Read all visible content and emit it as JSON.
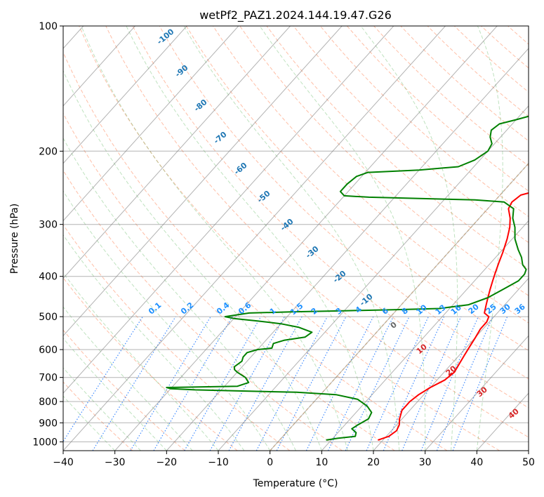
{
  "chart_data": {
    "type": "line",
    "title": "wetPf2_PAZ1.2024.144.19.47.G26",
    "xlabel": "Temperature (°C)",
    "ylabel": "Pressure (hPa)",
    "xlim": [
      -40,
      50
    ],
    "ylim": [
      1050,
      100
    ],
    "y_scale": "log",
    "grid": true,
    "x_ticks": [
      "−40",
      "−30",
      "−20",
      "−10",
      "0",
      "10",
      "20",
      "30",
      "40",
      "50"
    ],
    "y_ticks": [
      "100",
      "200",
      "300",
      "400",
      "500",
      "600",
      "700",
      "800",
      "900",
      "1000"
    ],
    "series": [
      {
        "color": "#ff0000",
        "points": [
          [
            19,
            990
          ],
          [
            20.5,
            970
          ],
          [
            21,
            940
          ],
          [
            20.5,
            910
          ],
          [
            19.5,
            880
          ],
          [
            18.5,
            840
          ],
          [
            18.5,
            800
          ],
          [
            19,
            770
          ],
          [
            20,
            740
          ],
          [
            21.5,
            710
          ],
          [
            22,
            680
          ],
          [
            21.5,
            650
          ],
          [
            21,
            620
          ],
          [
            20.5,
            590
          ],
          [
            20,
            560
          ],
          [
            19.5,
            535
          ],
          [
            19.5,
            515
          ],
          [
            19,
            500
          ],
          [
            17.5,
            490
          ],
          [
            16.5,
            470
          ],
          [
            15.5,
            450
          ],
          [
            14.5,
            430
          ],
          [
            13.5,
            410
          ],
          [
            12.5,
            390
          ],
          [
            11.5,
            370
          ],
          [
            10.5,
            350
          ],
          [
            9,
            325
          ],
          [
            7.5,
            305
          ],
          [
            6,
            290
          ],
          [
            4,
            275
          ],
          [
            3.5,
            265
          ],
          [
            4,
            255
          ],
          [
            6,
            250
          ],
          [
            8,
            245
          ],
          [
            10,
            240
          ],
          [
            10.5,
            230
          ],
          [
            9,
            215
          ],
          [
            7.5,
            200
          ],
          [
            7,
            185
          ],
          [
            6.5,
            170
          ],
          [
            6,
            160
          ],
          [
            6,
            148
          ],
          [
            5.5,
            135
          ],
          [
            5.5,
            125
          ],
          [
            5.5,
            117
          ],
          [
            6,
            112
          ],
          [
            7,
            106
          ],
          [
            8,
            100
          ]
        ]
      },
      {
        "color": "#008000",
        "points": [
          [
            9,
            990
          ],
          [
            11,
            980
          ],
          [
            14,
            970
          ],
          [
            13.5,
            950
          ],
          [
            12,
            930
          ],
          [
            12.5,
            910
          ],
          [
            13.5,
            880
          ],
          [
            13,
            850
          ],
          [
            11,
            820
          ],
          [
            8,
            790
          ],
          [
            3,
            770
          ],
          [
            -5,
            760
          ],
          [
            -15,
            755
          ],
          [
            -25,
            750
          ],
          [
            -30,
            745
          ],
          [
            -31,
            740
          ],
          [
            -25,
            738
          ],
          [
            -17.5,
            735
          ],
          [
            -16,
            720
          ],
          [
            -17.5,
            700
          ],
          [
            -20,
            680
          ],
          [
            -21,
            670
          ],
          [
            -21.5,
            660
          ],
          [
            -21,
            640
          ],
          [
            -21.5,
            625
          ],
          [
            -21.5,
            610
          ],
          [
            -20,
            600
          ],
          [
            -17.5,
            595
          ],
          [
            -18,
            580
          ],
          [
            -16.5,
            570
          ],
          [
            -13,
            560
          ],
          [
            -12.5,
            545
          ],
          [
            -16,
            530
          ],
          [
            -20,
            520
          ],
          [
            -25,
            512
          ],
          [
            -30,
            505
          ],
          [
            -32,
            500
          ],
          [
            -30,
            495
          ],
          [
            -28,
            490
          ],
          [
            -20,
            487
          ],
          [
            -10,
            484
          ],
          [
            0,
            481
          ],
          [
            8,
            478
          ],
          [
            13,
            468
          ],
          [
            15.5,
            450
          ],
          [
            17,
            430
          ],
          [
            18.5,
            410
          ],
          [
            18.5,
            395
          ],
          [
            18,
            385
          ],
          [
            16.5,
            375
          ],
          [
            15,
            360
          ],
          [
            13,
            345
          ],
          [
            10.5,
            325
          ],
          [
            8.5,
            305
          ],
          [
            6.5,
            290
          ],
          [
            5,
            275
          ],
          [
            2,
            265
          ],
          [
            -4,
            262
          ],
          [
            -15,
            260
          ],
          [
            -25,
            258
          ],
          [
            -30,
            256
          ],
          [
            -31.5,
            250
          ],
          [
            -31.5,
            240
          ],
          [
            -31,
            230
          ],
          [
            -29.5,
            225
          ],
          [
            -20,
            222
          ],
          [
            -13,
            218
          ],
          [
            -11,
            210
          ],
          [
            -10,
            200
          ],
          [
            -10.5,
            192
          ],
          [
            -12,
            185
          ],
          [
            -13,
            178
          ],
          [
            -12.5,
            172
          ],
          [
            -10,
            168
          ],
          [
            -6.5,
            162
          ],
          [
            -5.5,
            150
          ],
          [
            -5,
            140
          ],
          [
            -4,
            130
          ],
          [
            -2.5,
            120
          ],
          [
            -1,
            112
          ],
          [
            0,
            106
          ],
          [
            1,
            100
          ]
        ]
      }
    ],
    "dry_adiabat_labels": [
      "-100",
      "-90",
      "-80",
      "-70",
      "-60",
      "-50",
      "-40",
      "-30",
      "-20",
      "-10"
    ],
    "mixing_ratio_labels": [
      "0.1",
      "0.2",
      "0.4",
      "0.6",
      "1",
      "1.5",
      "2",
      "3",
      "4",
      "6",
      "8",
      "10",
      "13",
      "16",
      "20",
      "25",
      "30",
      "36"
    ],
    "isotherm_labels": [
      "0",
      "10",
      "20",
      "30",
      "40"
    ]
  }
}
